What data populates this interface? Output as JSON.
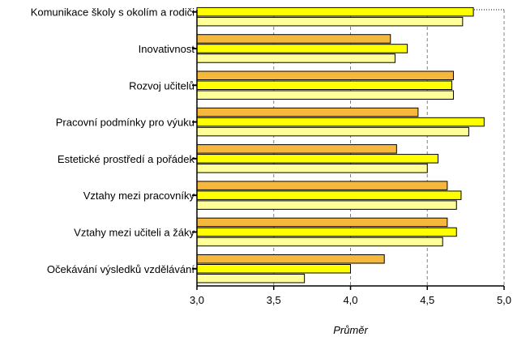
{
  "chart_data": {
    "type": "bar",
    "orientation": "horizontal",
    "xlabel": "Průměr",
    "xlim": [
      3.0,
      5.0
    ],
    "xticks": [
      3.0,
      3.5,
      4.0,
      4.5,
      5.0
    ],
    "xtick_labels": [
      "3,0",
      "3,5",
      "4,0",
      "4,5",
      "5,0"
    ],
    "grid": "vertical dashed",
    "categories": [
      "Komunikace školy s okolím a rodiči",
      "Inovativnost",
      "Rozvoj učitelů",
      "Pracovní podmínky pro výuku",
      "Estetické prostředí a pořádek",
      "Vztahy mezi pracovníky",
      "Vztahy mezi učiteli a žáky",
      "Očekávání výsledků vzdělávání"
    ],
    "series": [
      {
        "color": "#f5b83d",
        "values": [
          null,
          4.26,
          4.67,
          4.44,
          4.3,
          4.63,
          4.63,
          4.22
        ]
      },
      {
        "color": "#ffff00",
        "values": [
          4.8,
          4.37,
          4.66,
          4.87,
          4.57,
          4.72,
          4.69,
          4.0
        ]
      },
      {
        "color": "#ffff99",
        "values": [
          4.73,
          4.29,
          4.67,
          4.77,
          4.5,
          4.69,
          4.6,
          3.7
        ]
      }
    ]
  }
}
